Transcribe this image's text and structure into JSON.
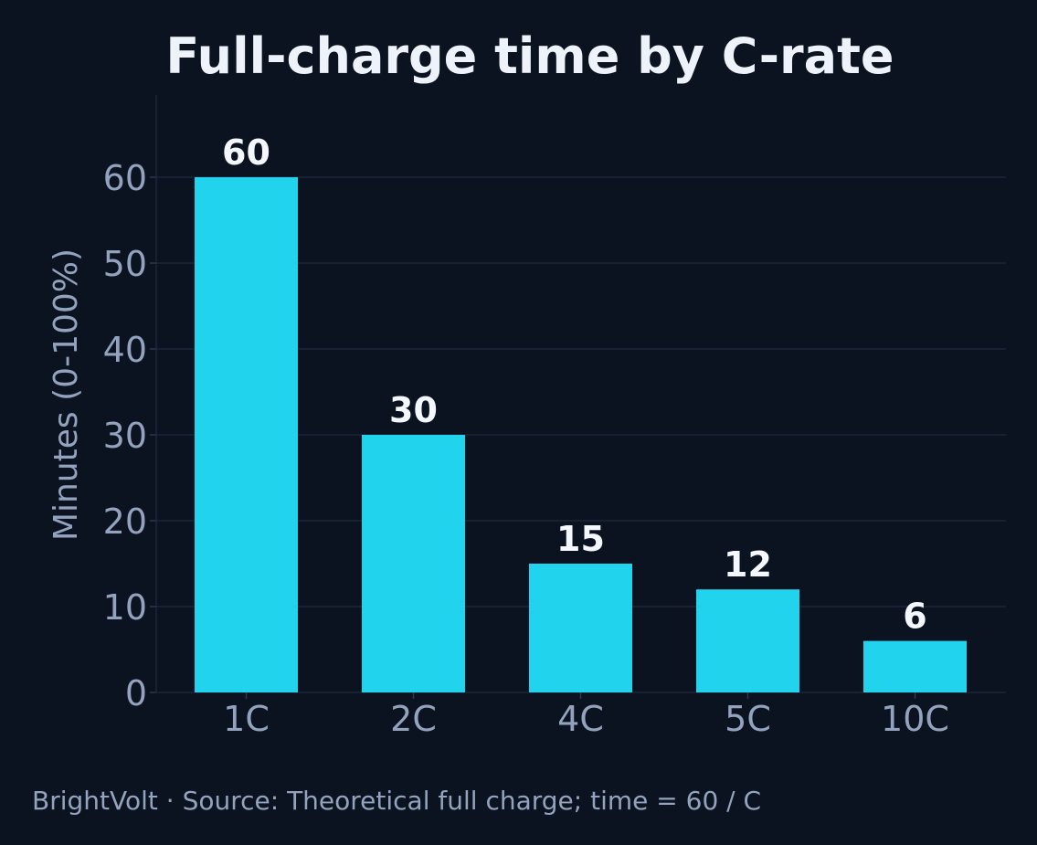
{
  "chart_data": {
    "type": "bar",
    "title": "Full-charge time by C-rate",
    "xlabel": "",
    "ylabel": "Minutes (0-100%)",
    "categories": [
      "1C",
      "2C",
      "4C",
      "5C",
      "10C"
    ],
    "values": [
      60,
      30,
      15,
      12,
      6
    ],
    "ylim": [
      0,
      69.5
    ],
    "yticks": [
      0,
      10,
      20,
      30,
      40,
      50,
      60
    ],
    "grid": true,
    "legend": "none",
    "colors": {
      "background": "#0b1320",
      "bar": "#22d3ee",
      "text": "#93a3bd",
      "title": "#eef2fb",
      "grid": "#1e2b40"
    }
  },
  "footer": {
    "text": "BrightVolt  ·  Source: Theoretical full charge; time = 60 / C"
  }
}
